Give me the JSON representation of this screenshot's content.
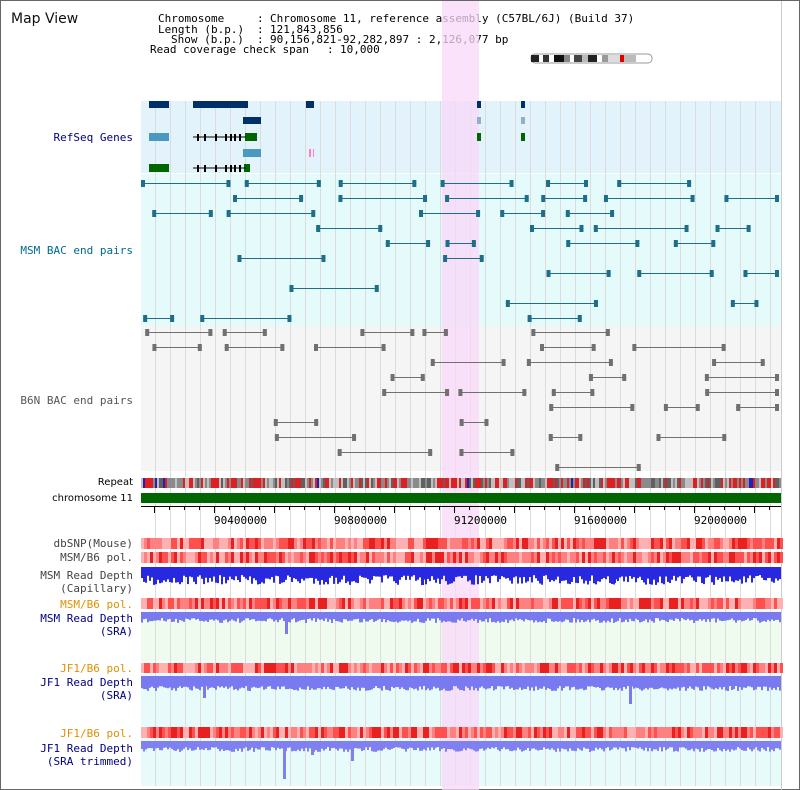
{
  "title": "Map View",
  "info": {
    "chromosome_label": "Chromosome",
    "chromosome_value": "Chromosome 11, reference assembly (C57BL/6J) (Build 37)",
    "length_label": "Length (b.p.)",
    "length_value": "121,843,856",
    "show_label": "Show (b.p.)",
    "show_value": "90,156,821-92,282,897 : 2,126,077 bp",
    "coverage_label": "Read coverage check span",
    "coverage_value": "10,000"
  },
  "tracks": {
    "refseq": "RefSeq Genes",
    "msm_bac": "MSM BAC end pairs",
    "b6n_bac": "B6N BAC end pairs",
    "repeat": "Repeat",
    "chromosome": "chromosome 11",
    "dbsnp": "dbSNP(Mouse)",
    "msm_b6_pol": "MSM/B6 pol.",
    "msm_read_depth_cap": "MSM Read Depth\n(Capillary)",
    "msm_b6_pol2": "MSM/B6 pol.",
    "msm_read_depth_sra": "MSM Read Depth\n(SRA)",
    "jf1_b6_pol": "JF1/B6 pol.",
    "jf1_read_depth_sra": "JF1 Read Depth\n(SRA)",
    "jf1_b6_pol2": "JF1/B6 pol.",
    "jf1_read_depth_trim": "JF1 Read Depth\n(SRA trimmed)"
  },
  "axis": {
    "ticks": [
      "90400000",
      "90800000",
      "91200000",
      "91600000",
      "92000000"
    ]
  },
  "colors": {
    "refseq_bg": "#e3f3fb",
    "msm_bac_bg": "#e5fbfb",
    "b6n_bac_bg": "#f5f5f5",
    "highlight": "#f8d8f8",
    "label_blue": "#000080",
    "label_teal": "#006a8a",
    "label_gray": "#555555",
    "label_orange": "#e09000",
    "chrom_green": "#006600",
    "depth_blue": "#2020e0"
  }
}
